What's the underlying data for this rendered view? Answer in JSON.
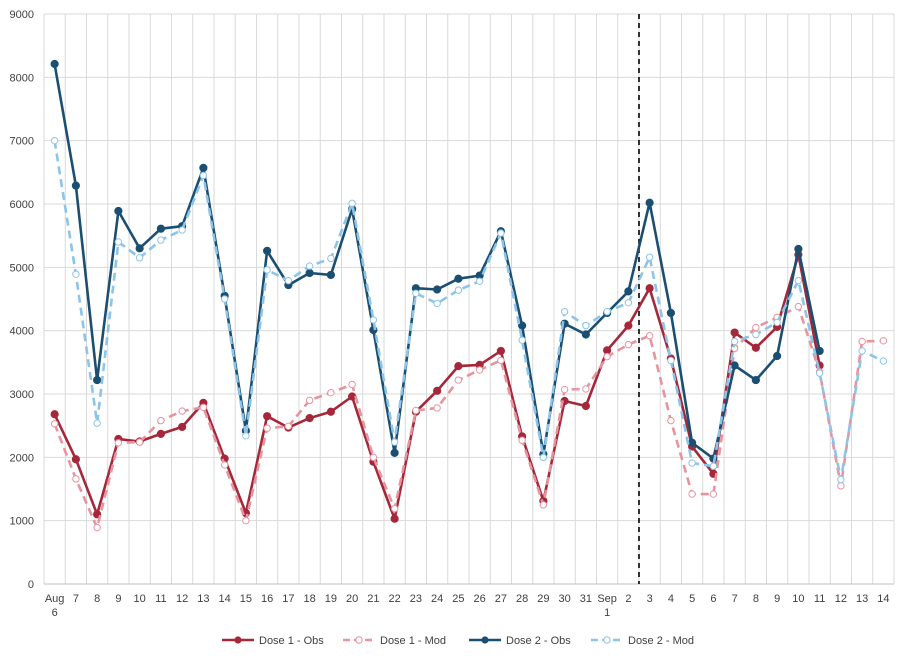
{
  "chart_data": {
    "type": "line",
    "categories": [
      "Aug 6",
      "7",
      "8",
      "9",
      "10",
      "11",
      "12",
      "13",
      "14",
      "15",
      "16",
      "17",
      "18",
      "19",
      "20",
      "21",
      "22",
      "23",
      "24",
      "25",
      "26",
      "27",
      "28",
      "29",
      "30",
      "31",
      "Sep 1",
      "2",
      "3",
      "4",
      "5",
      "6",
      "7",
      "8",
      "9",
      "10",
      "11",
      "12",
      "13",
      "14"
    ],
    "ylim": [
      0,
      9000
    ],
    "yticks": [
      0,
      1000,
      2000,
      3000,
      4000,
      5000,
      6000,
      7000,
      8000,
      9000
    ],
    "grid": true,
    "legend_position": "bottom",
    "vertical_marker_after_category": "2",
    "series": [
      {
        "name": "Dose 1 - Obs",
        "color": "#a5283a",
        "style": "solid",
        "marker": "filled",
        "values": [
          2680,
          1970,
          1100,
          2290,
          2250,
          2370,
          2480,
          2860,
          1980,
          1120,
          2650,
          2470,
          2620,
          2720,
          2960,
          1930,
          1030,
          2720,
          3050,
          3440,
          3460,
          3680,
          2330,
          1310,
          2890,
          2810,
          3690,
          4080,
          4670,
          3560,
          2170,
          1740,
          3970,
          3730,
          4060,
          5200,
          3450,
          null,
          null,
          null
        ]
      },
      {
        "name": "Dose 1 - Mod",
        "color": "#e8949f",
        "style": "dashed",
        "marker": "open",
        "values": [
          2530,
          1660,
          890,
          2230,
          2240,
          2580,
          2730,
          2790,
          1880,
          1000,
          2460,
          2490,
          2900,
          3020,
          3150,
          2000,
          1190,
          2740,
          2780,
          3220,
          3380,
          3530,
          2270,
          1250,
          3070,
          3080,
          3590,
          3780,
          3920,
          2580,
          1420,
          1420,
          3720,
          4050,
          4210,
          4380,
          3350,
          1550,
          3830,
          3840
        ]
      },
      {
        "name": "Dose 2 - Obs",
        "color": "#1b4f72",
        "style": "solid",
        "marker": "filled",
        "values": [
          8210,
          6290,
          3220,
          5890,
          5300,
          5610,
          5650,
          6570,
          4550,
          2420,
          5260,
          4720,
          4910,
          4880,
          5920,
          4010,
          2070,
          4670,
          4650,
          4820,
          4870,
          5570,
          4080,
          2050,
          4110,
          3940,
          4280,
          4620,
          6020,
          4280,
          2230,
          1980,
          3450,
          3220,
          3600,
          5290,
          3680,
          null,
          null,
          null
        ]
      },
      {
        "name": "Dose 2 - Mod",
        "color": "#8dc4e8",
        "style": "dashed",
        "marker": "open",
        "values": [
          7000,
          4890,
          2540,
          5400,
          5150,
          5430,
          5590,
          6450,
          4500,
          2340,
          4960,
          4790,
          5020,
          5140,
          6010,
          4170,
          2240,
          4590,
          4430,
          4640,
          4780,
          5540,
          3850,
          2000,
          4300,
          4080,
          4300,
          4440,
          5160,
          3530,
          1910,
          1860,
          3830,
          3940,
          4130,
          4790,
          3330,
          1650,
          3680,
          3520
        ]
      }
    ]
  }
}
